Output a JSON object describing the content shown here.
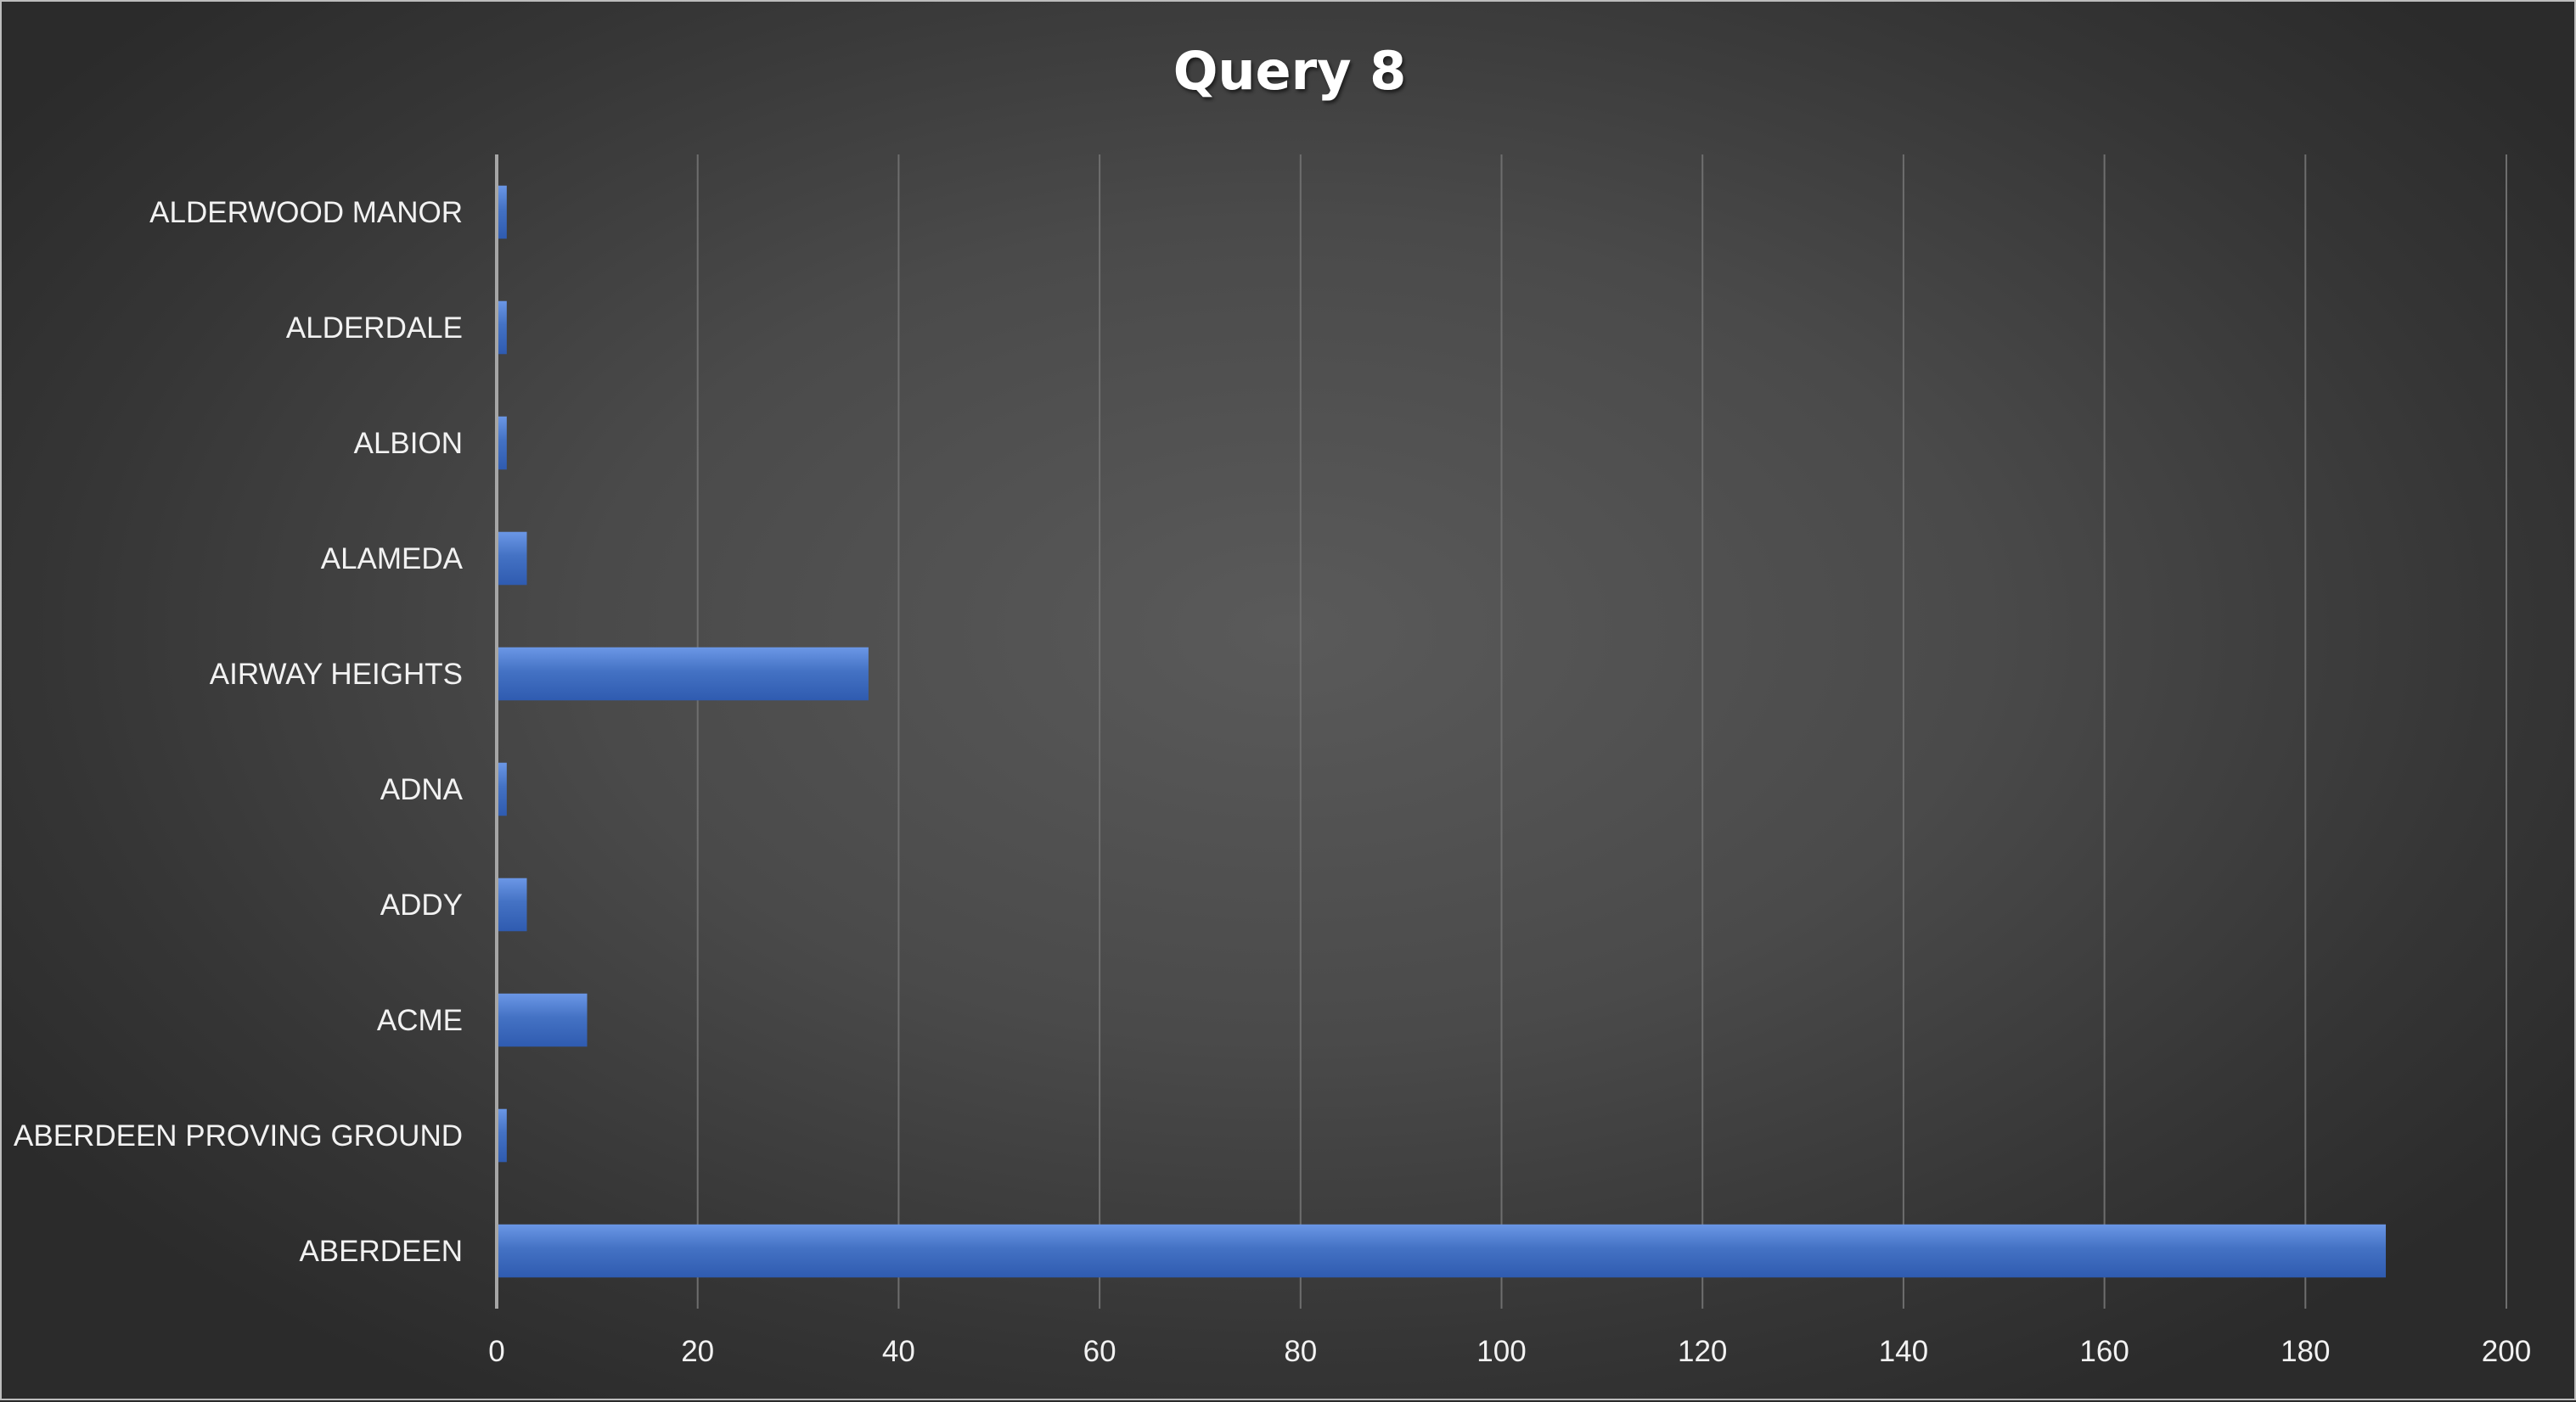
{
  "chart_data": {
    "type": "bar",
    "orientation": "horizontal",
    "title": "Query 8",
    "xlabel": "",
    "ylabel": "",
    "categories": [
      "ABERDEEN",
      "ABERDEEN PROVING GROUND",
      "ACME",
      "ADDY",
      "ADNA",
      "AIRWAY HEIGHTS",
      "ALAMEDA",
      "ALBION",
      "ALDERDALE",
      "ALDERWOOD MANOR"
    ],
    "values": [
      188,
      1,
      9,
      3,
      1,
      37,
      3,
      1,
      1,
      1
    ],
    "xlim": [
      0,
      200
    ],
    "xticks": [
      0,
      20,
      40,
      60,
      80,
      100,
      120,
      140,
      160,
      180,
      200
    ],
    "grid": "vertical",
    "legend": "none",
    "colors": {
      "bar": "#4472c4",
      "bar_light": "#5b8ae0",
      "bar_dark": "#2f5bb0",
      "text": "#f2f2f2",
      "gridline": "#6e6e6e",
      "axis": "#a6a6a6"
    }
  }
}
